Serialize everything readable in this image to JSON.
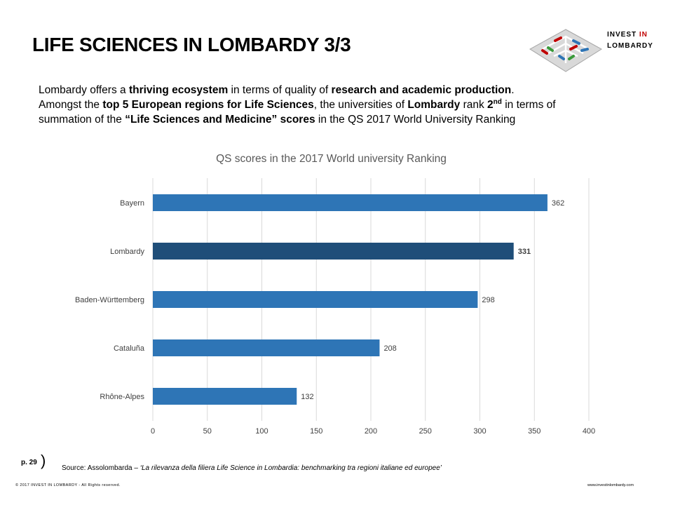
{
  "title": "LIFE SCIENCES IN LOMBARDY 3/3",
  "logo": {
    "line1": "INVEST ",
    "line1_highlight": "IN",
    "line2": "LOMBARDY"
  },
  "intro": {
    "p1_a": "Lombardy offers a ",
    "p1_b": "thriving ecosystem",
    "p1_c": " in terms of quality of ",
    "p1_d": "research and academic production",
    "p1_e": ".",
    "p2_a": "Amongst the ",
    "p2_b": "top 5 European regions for Life Sciences",
    "p2_c": ", the universities of ",
    "p2_d": "Lombardy",
    "p2_e": " rank ",
    "p2_f": "2",
    "p2_sup": "nd",
    "p2_g": " in terms of",
    "p3_a": "summation of the ",
    "p3_b": "“Life Sciences and Medicine” scores",
    "p3_c": " in the QS 2017 World University Ranking"
  },
  "chart_data": {
    "type": "bar",
    "orientation": "horizontal",
    "title": "QS scores in the 2017 World university Ranking",
    "categories": [
      "Bayern",
      "Lombardy",
      "Baden-Württemberg",
      "Cataluña",
      "Rhône-Alpes"
    ],
    "values": [
      362,
      331,
      298,
      208,
      132
    ],
    "highlight": "Lombardy",
    "colors": {
      "default": "#2e75b6",
      "highlight": "#1f4e79"
    },
    "xlim": [
      0,
      400
    ],
    "xticks": [
      0,
      50,
      100,
      150,
      200,
      250,
      300,
      350,
      400
    ],
    "grid": true,
    "data_labels": true
  },
  "footer": {
    "page": "p. 29",
    "paren": ")",
    "source_prefix": "Source: Assolombarda – ",
    "source_italic": "‘La rilevanza della filiera Life Science in Lombardia: benchmarking tra regioni italiane ed europee’",
    "copyright": "© 2017 INVEST IN LOMBARDY - All Rights reserved.",
    "website": "www.investinlombardy.com"
  }
}
